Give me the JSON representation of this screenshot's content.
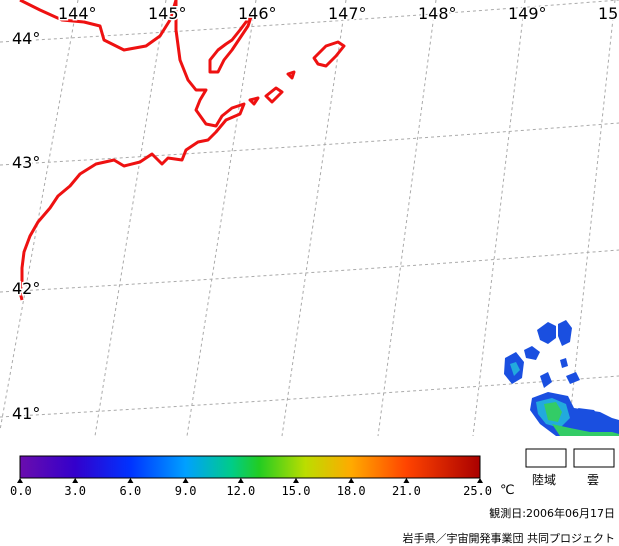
{
  "map": {
    "longitude_labels": [
      "144°",
      "145°",
      "146°",
      "147°",
      "148°",
      "149°",
      "15"
    ],
    "latitude_labels": [
      "44°",
      "43°",
      "42°",
      "41°"
    ]
  },
  "colorbar": {
    "ticks": [
      "0.0",
      "3.0",
      "6.0",
      "9.0",
      "12.0",
      "15.0",
      "18.0",
      "21.0",
      "25.0"
    ],
    "unit": "℃",
    "colors": [
      "#6a0dad",
      "#3300cc",
      "#0044ff",
      "#00aaff",
      "#00cc66",
      "#33dd00",
      "#ccdd00",
      "#ff9900",
      "#ff3300",
      "#aa0000"
    ]
  },
  "legend": {
    "land_label": "陸域",
    "cloud_label": "雲"
  },
  "footer": {
    "observation_date": "観測日:2006年06月17日",
    "credit": "岩手県／宇宙開発事業団 共同プロジェクト"
  },
  "colors": {
    "coastline": "#ee1111",
    "grid": "#aaaaaa",
    "sst_blue": "#1a4fe0",
    "sst_cyan": "#22aadd",
    "sst_green": "#33cc66"
  }
}
